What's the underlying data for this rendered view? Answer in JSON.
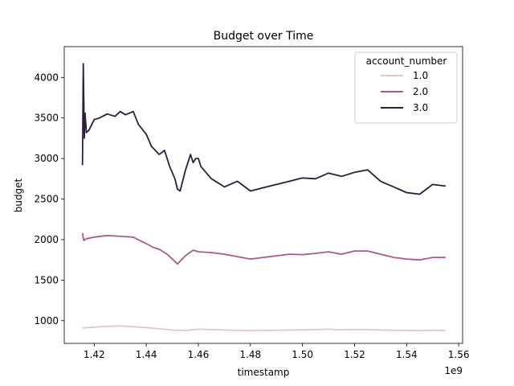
{
  "chart_data": {
    "type": "line",
    "title": "Budget over Time",
    "xlabel": "timestamp",
    "ylabel": "budget",
    "x_offset_label": "1e9",
    "xlim": [
      1.4085,
      1.5615
    ],
    "ylim": [
      720,
      4380
    ],
    "x_ticks": [
      1.42,
      1.44,
      1.46,
      1.48,
      1.5,
      1.52,
      1.54,
      1.56
    ],
    "x_tick_labels": [
      "1.42",
      "1.44",
      "1.46",
      "1.48",
      "1.50",
      "1.52",
      "1.54",
      "1.56"
    ],
    "y_ticks": [
      1000,
      1500,
      2000,
      2500,
      3000,
      3500,
      4000
    ],
    "y_tick_labels": [
      "1000",
      "1500",
      "2000",
      "2500",
      "3000",
      "3500",
      "4000"
    ],
    "grid": false,
    "legend": {
      "title": "account_number",
      "position": "top-right"
    },
    "series": [
      {
        "name": "1.0",
        "color": "#ebc4c2",
        "x": [
          1.4155,
          1.418,
          1.42,
          1.425,
          1.43,
          1.435,
          1.44,
          1.445,
          1.45,
          1.455,
          1.46,
          1.465,
          1.47,
          1.475,
          1.48,
          1.485,
          1.49,
          1.495,
          1.5,
          1.505,
          1.51,
          1.515,
          1.52,
          1.525,
          1.53,
          1.535,
          1.54,
          1.545,
          1.55,
          1.555
        ],
        "y": [
          910,
          915,
          920,
          930,
          935,
          925,
          915,
          900,
          885,
          880,
          895,
          890,
          885,
          880,
          878,
          880,
          882,
          885,
          887,
          890,
          895,
          888,
          892,
          890,
          885,
          882,
          880,
          878,
          882,
          880
        ]
      },
      {
        "name": "2.0",
        "color": "#a55a8b",
        "x": [
          1.4155,
          1.416,
          1.417,
          1.42,
          1.425,
          1.43,
          1.435,
          1.44,
          1.443,
          1.445,
          1.448,
          1.45,
          1.452,
          1.455,
          1.458,
          1.46,
          1.465,
          1.47,
          1.475,
          1.48,
          1.485,
          1.49,
          1.495,
          1.5,
          1.505,
          1.51,
          1.515,
          1.52,
          1.525,
          1.53,
          1.535,
          1.54,
          1.545,
          1.55,
          1.555
        ],
        "y": [
          2080,
          1990,
          2010,
          2030,
          2050,
          2040,
          2030,
          1950,
          1900,
          1880,
          1820,
          1760,
          1700,
          1800,
          1870,
          1850,
          1840,
          1820,
          1790,
          1760,
          1780,
          1800,
          1820,
          1815,
          1830,
          1850,
          1820,
          1860,
          1860,
          1820,
          1780,
          1760,
          1750,
          1780,
          1780
        ]
      },
      {
        "name": "3.0",
        "color": "#2c1e3d",
        "x": [
          1.4155,
          1.4158,
          1.4162,
          1.4165,
          1.417,
          1.418,
          1.42,
          1.422,
          1.425,
          1.428,
          1.43,
          1.432,
          1.435,
          1.437,
          1.44,
          1.442,
          1.445,
          1.447,
          1.449,
          1.451,
          1.452,
          1.453,
          1.455,
          1.456,
          1.457,
          1.458,
          1.459,
          1.46,
          1.461,
          1.465,
          1.47,
          1.475,
          1.48,
          1.485,
          1.49,
          1.495,
          1.5,
          1.505,
          1.51,
          1.515,
          1.52,
          1.525,
          1.53,
          1.535,
          1.54,
          1.545,
          1.55,
          1.555
        ],
        "y": [
          2920,
          4170,
          3250,
          3560,
          3320,
          3350,
          3480,
          3500,
          3550,
          3520,
          3580,
          3540,
          3580,
          3420,
          3300,
          3150,
          3050,
          3100,
          2900,
          2750,
          2620,
          2600,
          2850,
          2950,
          3050,
          2950,
          3000,
          3000,
          2900,
          2750,
          2650,
          2720,
          2600,
          2640,
          2680,
          2720,
          2760,
          2750,
          2820,
          2780,
          2830,
          2860,
          2720,
          2650,
          2580,
          2560,
          2680,
          2660
        ]
      }
    ]
  }
}
